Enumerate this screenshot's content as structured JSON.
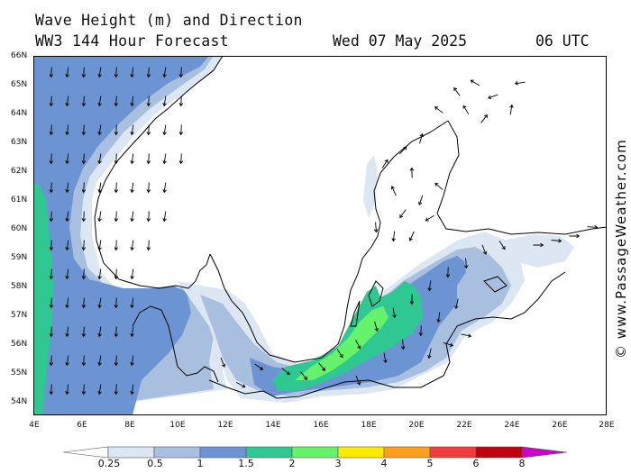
{
  "header": {
    "title_line1": "Wave Height (m) and Direction",
    "title_line2": "WW3 144 Hour Forecast",
    "date": "Wed 07 May 2025",
    "time": "06 UTC"
  },
  "copyright": "© www.PassageWeather.com",
  "lat_labels": [
    "66N",
    "65N",
    "64N",
    "63N",
    "62N",
    "61N",
    "60N",
    "59N",
    "58N",
    "57N",
    "56N",
    "55N",
    "54N"
  ],
  "lon_labels": [
    "4E",
    "6E",
    "8E",
    "10E",
    "12E",
    "14E",
    "16E",
    "18E",
    "20E",
    "22E",
    "24E",
    "26E",
    "28E"
  ],
  "legend": {
    "labels": [
      "0.25",
      "0.5",
      "1",
      "1.5",
      "2",
      "3",
      "4",
      "5",
      "6",
      "8"
    ],
    "colors": [
      "#ffffff",
      "#dde6f3",
      "#a9bfe0",
      "#6d94d2",
      "#2fc792",
      "#66f26a",
      "#ffea00",
      "#ff9f1c",
      "#f03c3c",
      "#c00010",
      "#cc00cc"
    ]
  }
}
